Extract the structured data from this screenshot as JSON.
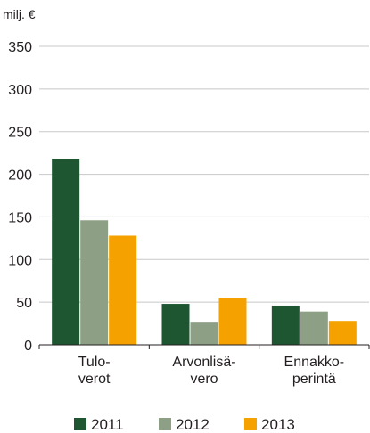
{
  "chart_data": {
    "type": "bar",
    "unit_label": "milj. €",
    "categories": [
      [
        "Tulo-",
        "verot"
      ],
      [
        "Arvonlisä-",
        "vero"
      ],
      [
        "Ennakko-",
        "perintä"
      ]
    ],
    "series": [
      {
        "name": "2011",
        "color": "#1e5631",
        "values": [
          218,
          48,
          46
        ]
      },
      {
        "name": "2012",
        "color": "#8da085",
        "values": [
          146,
          27,
          39
        ]
      },
      {
        "name": "2013",
        "color": "#f5a100",
        "values": [
          128,
          55,
          28
        ]
      }
    ],
    "ylim": [
      0,
      350
    ],
    "yticks": [
      0,
      50,
      100,
      150,
      200,
      250,
      300,
      350
    ],
    "grid": true,
    "legend_position": "bottom"
  }
}
